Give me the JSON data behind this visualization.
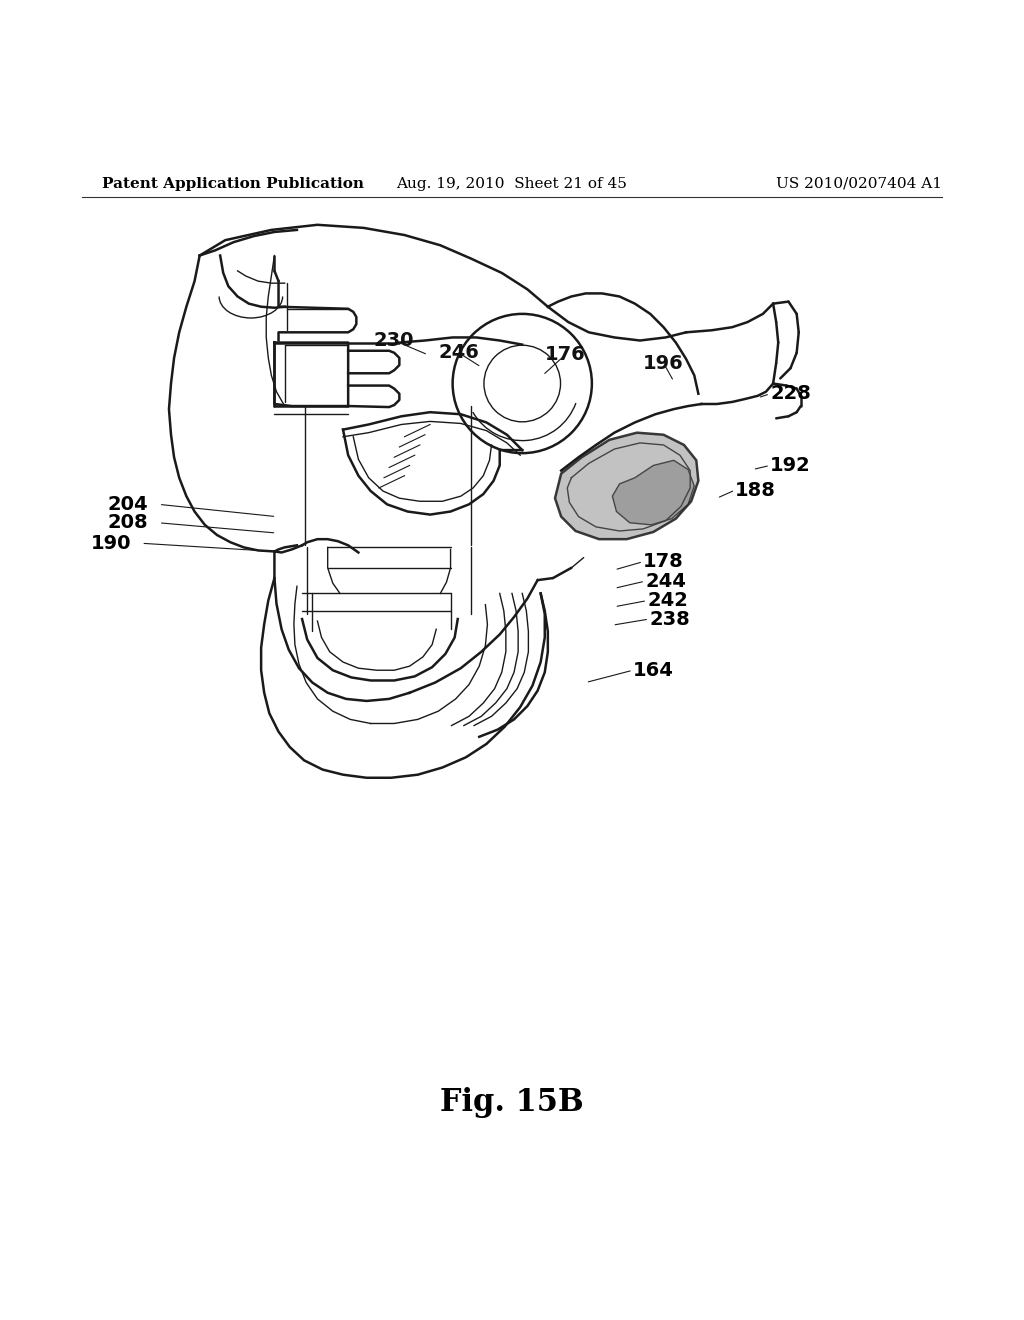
{
  "background_color": "#ffffff",
  "header_left": "Patent Application Publication",
  "header_center": "Aug. 19, 2010  Sheet 21 of 45",
  "header_right": "US 2010/0207404 A1",
  "figure_label": "Fig. 15B",
  "header_fontsize": 11,
  "label_fontsize": 14,
  "fig_label_fontsize": 22
}
